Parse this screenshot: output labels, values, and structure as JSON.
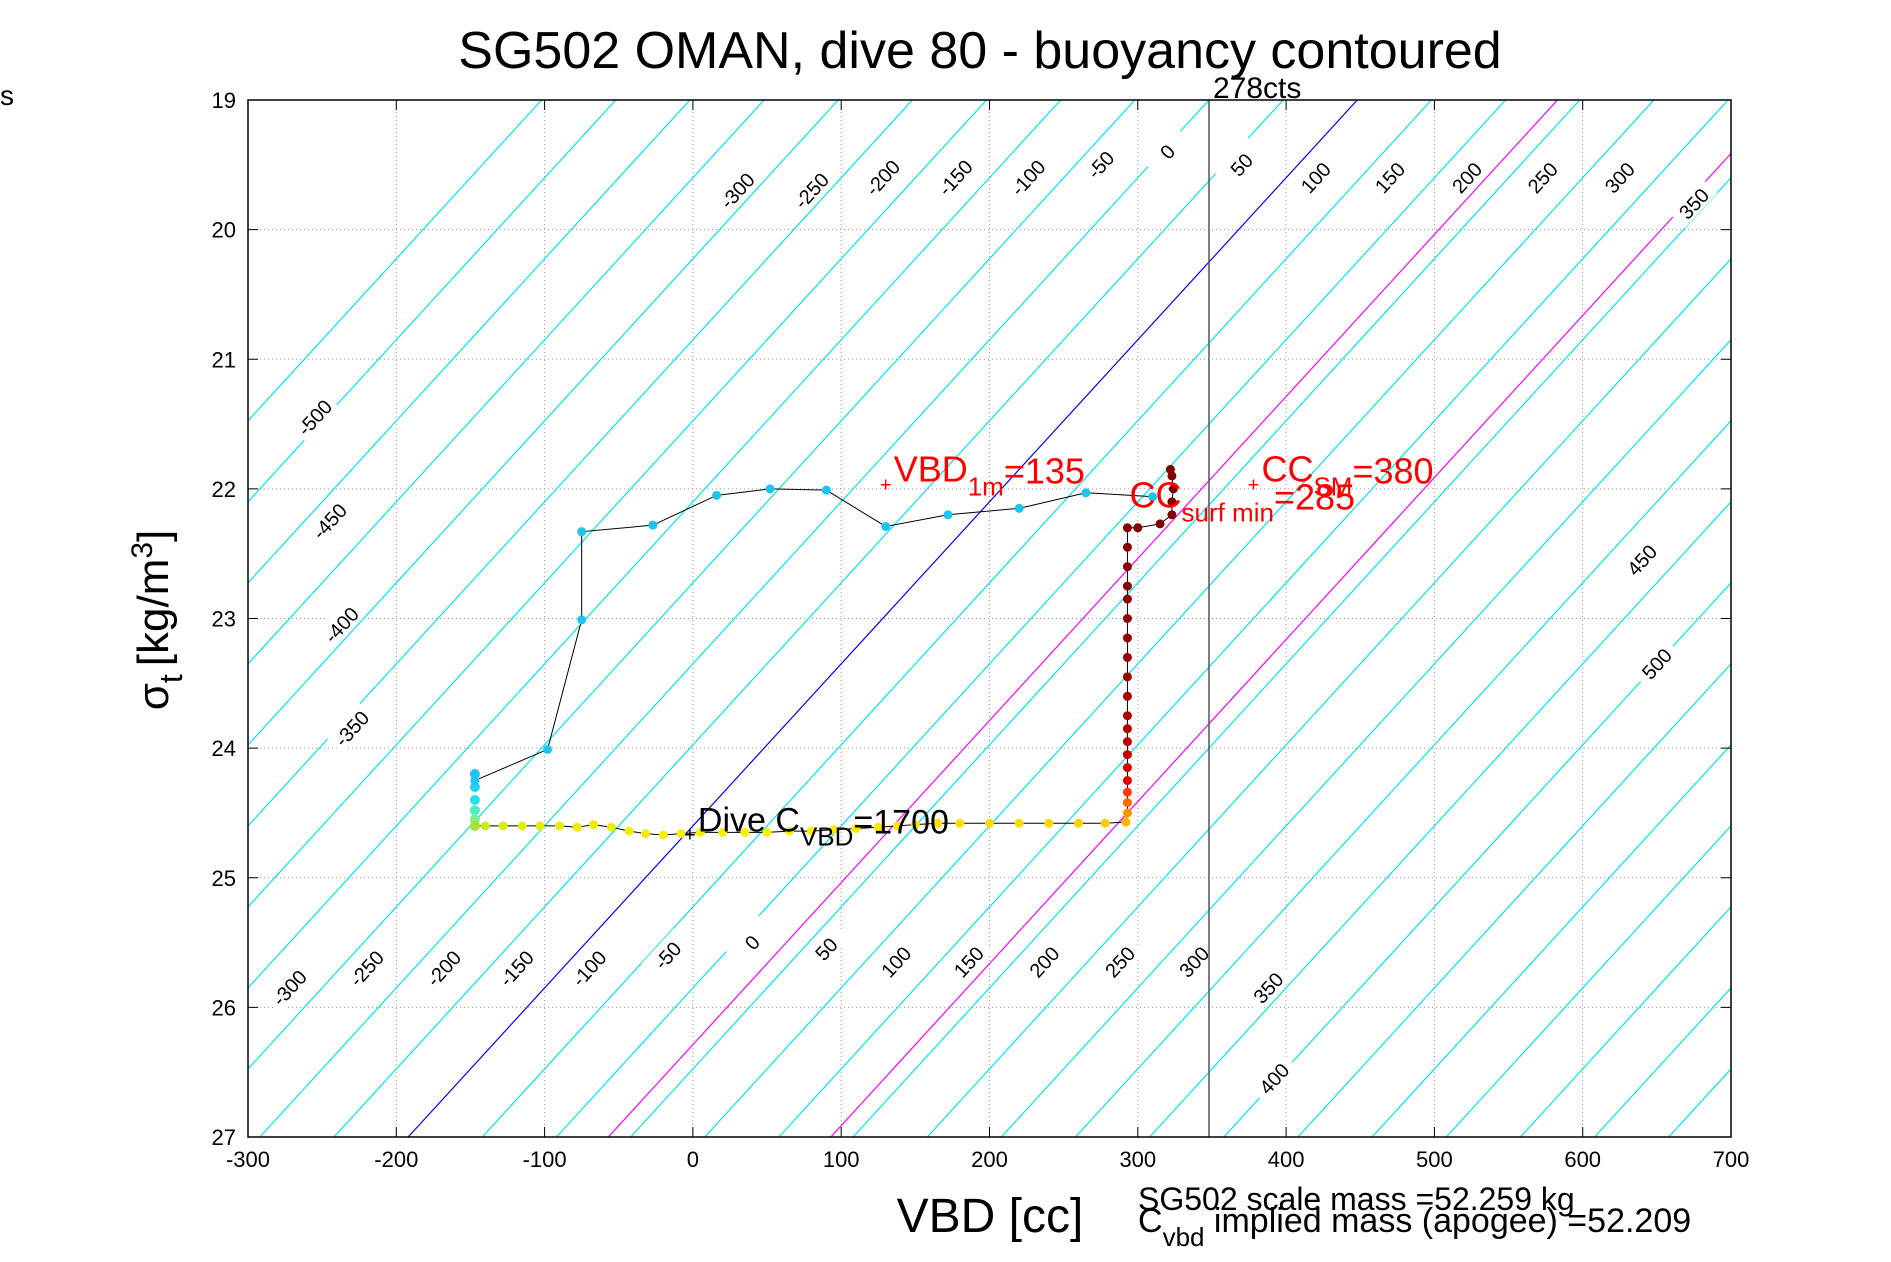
{
  "corner_label": "s",
  "chart_data": {
    "type": "scatter",
    "title": "SG502 OMAN, dive 80 - buoyancy contoured",
    "xlabel": "VBD [cc]",
    "ylabel_base": "σ",
    "ylabel_sub": "t",
    "ylabel_unit": "[kg/m",
    "ylabel_sup": "3",
    "ylabel_close": "]",
    "xlim": [
      -300,
      700
    ],
    "ylim": [
      19,
      27
    ],
    "y_reversed": true,
    "grid": true,
    "xticks": [
      -300,
      -200,
      -100,
      0,
      100,
      200,
      300,
      400,
      500,
      600,
      700
    ],
    "yticks": [
      19,
      20,
      21,
      22,
      23,
      24,
      25,
      26,
      27
    ],
    "vertical_line": {
      "x": 348,
      "label": "278cts",
      "color": "#555555"
    },
    "contour_colors": {
      "default": "#00e5ee",
      "zero": "#0000ff",
      "highlight": "#ff00ff"
    },
    "contours": [
      {
        "value": -500,
        "label": "-500"
      },
      {
        "value": -450,
        "label": "-450"
      },
      {
        "value": -400,
        "label": "-400"
      },
      {
        "value": -350,
        "label": "-350"
      },
      {
        "value": -300,
        "label": "-300"
      },
      {
        "value": -250,
        "label": "-250"
      },
      {
        "value": -200,
        "label": "-200"
      },
      {
        "value": -150,
        "label": "-150"
      },
      {
        "value": -100,
        "label": "-100"
      },
      {
        "value": -50,
        "label": "-50"
      },
      {
        "value": 0,
        "label": "0"
      },
      {
        "value": 50,
        "label": "50"
      },
      {
        "value": 100,
        "label": "100"
      },
      {
        "value": 150,
        "label": "150"
      },
      {
        "value": 200,
        "label": "200"
      },
      {
        "value": 250,
        "label": "250"
      },
      {
        "value": 300,
        "label": "300"
      },
      {
        "value": 350,
        "label": "350"
      },
      {
        "value": 400,
        "label": "400"
      },
      {
        "value": 450,
        "label": "450"
      },
      {
        "value": 500,
        "label": "500"
      }
    ],
    "contour_lines": [
      -550,
      -500,
      -450,
      -400,
      -350,
      -300,
      -250,
      -200,
      -150,
      -100,
      -50,
      0,
      50,
      100,
      150,
      200,
      250,
      300,
      350,
      400,
      450,
      500,
      550,
      600,
      650,
      700,
      750,
      800,
      850
    ],
    "highlight_contours": [
      135,
      285
    ],
    "contour_labels_top": [
      {
        "x": 30,
        "y": 19.7,
        "label": "-300"
      },
      {
        "x": 80,
        "y": 19.7,
        "label": "-250"
      },
      {
        "x": 128,
        "y": 19.6,
        "label": "-200"
      },
      {
        "x": 177,
        "y": 19.6,
        "label": "-150"
      },
      {
        "x": 226,
        "y": 19.6,
        "label": "-100"
      },
      {
        "x": 275,
        "y": 19.5,
        "label": "-50"
      },
      {
        "x": 320,
        "y": 19.4,
        "label": "0"
      },
      {
        "x": 370,
        "y": 19.5,
        "label": "50"
      },
      {
        "x": 420,
        "y": 19.6,
        "label": "100"
      },
      {
        "x": 470,
        "y": 19.6,
        "label": "150"
      },
      {
        "x": 522,
        "y": 19.6,
        "label": "200"
      },
      {
        "x": 573,
        "y": 19.6,
        "label": "250"
      },
      {
        "x": 625,
        "y": 19.6,
        "label": "300"
      },
      {
        "x": 675,
        "y": 19.8,
        "label": "350"
      }
    ],
    "contour_labels_left": [
      {
        "x": -255,
        "y": 21.45,
        "label": "-500"
      },
      {
        "x": -245,
        "y": 22.25,
        "label": "-450"
      },
      {
        "x": -237,
        "y": 23.05,
        "label": "-400"
      },
      {
        "x": -230,
        "y": 23.85,
        "label": "-350"
      }
    ],
    "contour_labels_right": [
      {
        "x": 640,
        "y": 22.55,
        "label": "450"
      },
      {
        "x": 650,
        "y": 23.35,
        "label": "500"
      }
    ],
    "contour_labels_bottom": [
      {
        "x": -272,
        "y": 25.85,
        "label": "-300"
      },
      {
        "x": -220,
        "y": 25.7,
        "label": "-250"
      },
      {
        "x": -168,
        "y": 25.7,
        "label": "-200"
      },
      {
        "x": -119,
        "y": 25.7,
        "label": "-150"
      },
      {
        "x": -70,
        "y": 25.7,
        "label": "-100"
      },
      {
        "x": -17,
        "y": 25.6,
        "label": "-50"
      },
      {
        "x": 40,
        "y": 25.5,
        "label": "0"
      },
      {
        "x": 90,
        "y": 25.55,
        "label": "50"
      },
      {
        "x": 137,
        "y": 25.65,
        "label": "100"
      },
      {
        "x": 186,
        "y": 25.65,
        "label": "150"
      },
      {
        "x": 237,
        "y": 25.65,
        "label": "200"
      },
      {
        "x": 288,
        "y": 25.65,
        "label": "250"
      },
      {
        "x": 338,
        "y": 25.65,
        "label": "300"
      },
      {
        "x": 388,
        "y": 25.85,
        "label": "350"
      },
      {
        "x": 392,
        "y": 26.55,
        "label": "400"
      }
    ],
    "dive_path": [
      {
        "x": -147,
        "y": 24.6,
        "c": "#a6e22e"
      },
      {
        "x": -140,
        "y": 24.6,
        "c": "#cfe81a"
      },
      {
        "x": -128,
        "y": 24.6,
        "c": "#d9ea14"
      },
      {
        "x": -115,
        "y": 24.6,
        "c": "#dfeb10"
      },
      {
        "x": -103,
        "y": 24.6,
        "c": "#e4ec0c"
      },
      {
        "x": -90,
        "y": 24.6,
        "c": "#e6ec0b"
      },
      {
        "x": -78,
        "y": 24.61,
        "c": "#e8ed0a"
      },
      {
        "x": -67,
        "y": 24.59,
        "c": "#eaed09"
      },
      {
        "x": -55,
        "y": 24.61,
        "c": "#ecee08"
      },
      {
        "x": -43,
        "y": 24.64,
        "c": "#eeee07"
      },
      {
        "x": -32,
        "y": 24.66,
        "c": "#f0ee06"
      },
      {
        "x": -20,
        "y": 24.67,
        "c": "#f2ef05"
      },
      {
        "x": -8,
        "y": 24.66,
        "c": "#f4ef04"
      },
      {
        "x": 5,
        "y": 24.65,
        "c": "#f6ef03"
      },
      {
        "x": 20,
        "y": 24.65,
        "c": "#f8f002"
      },
      {
        "x": 35,
        "y": 24.65,
        "c": "#faf001"
      },
      {
        "x": 50,
        "y": 24.65,
        "c": "#fcf000"
      },
      {
        "x": 65,
        "y": 24.64,
        "c": "#fdee00"
      },
      {
        "x": 80,
        "y": 24.64,
        "c": "#feec00"
      },
      {
        "x": 95,
        "y": 24.63,
        "c": "#ffea00"
      },
      {
        "x": 110,
        "y": 24.62,
        "c": "#ffe800"
      },
      {
        "x": 125,
        "y": 24.61,
        "c": "#ffe600"
      },
      {
        "x": 138,
        "y": 24.6,
        "c": "#ffe400"
      },
      {
        "x": 150,
        "y": 24.59,
        "c": "#ffe200"
      },
      {
        "x": 165,
        "y": 24.58,
        "c": "#ffe000"
      },
      {
        "x": 180,
        "y": 24.58,
        "c": "#ffde00"
      },
      {
        "x": 200,
        "y": 24.58,
        "c": "#ffdc00"
      },
      {
        "x": 220,
        "y": 24.58,
        "c": "#ffd900"
      },
      {
        "x": 240,
        "y": 24.58,
        "c": "#ffd600"
      },
      {
        "x": 260,
        "y": 24.58,
        "c": "#ffd200"
      },
      {
        "x": 278,
        "y": 24.58,
        "c": "#ffcc00"
      },
      {
        "x": 292,
        "y": 24.57,
        "c": "#ffb400"
      },
      {
        "x": 293,
        "y": 24.5,
        "c": "#ff9000"
      },
      {
        "x": 293,
        "y": 24.42,
        "c": "#ff6a00"
      },
      {
        "x": 293,
        "y": 24.34,
        "c": "#ff3a00"
      },
      {
        "x": 293,
        "y": 24.25,
        "c": "#e40000"
      },
      {
        "x": 293,
        "y": 24.15,
        "c": "#d00000"
      },
      {
        "x": 293,
        "y": 24.05,
        "c": "#c40000"
      },
      {
        "x": 293,
        "y": 23.95,
        "c": "#bc0000"
      },
      {
        "x": 293,
        "y": 23.85,
        "c": "#b40000"
      },
      {
        "x": 293,
        "y": 23.75,
        "c": "#ae0000"
      },
      {
        "x": 293,
        "y": 23.6,
        "c": "#a80000"
      },
      {
        "x": 293,
        "y": 23.45,
        "c": "#a20000"
      },
      {
        "x": 293,
        "y": 23.3,
        "c": "#9c0000"
      },
      {
        "x": 293,
        "y": 23.15,
        "c": "#960000"
      },
      {
        "x": 293,
        "y": 23.0,
        "c": "#920000"
      },
      {
        "x": 293,
        "y": 22.85,
        "c": "#8e0000"
      },
      {
        "x": 293,
        "y": 22.75,
        "c": "#8a0000"
      },
      {
        "x": 293,
        "y": 22.6,
        "c": "#880000"
      },
      {
        "x": 293,
        "y": 22.45,
        "c": "#860000"
      },
      {
        "x": 293,
        "y": 22.3,
        "c": "#840000"
      },
      {
        "x": 300,
        "y": 22.3,
        "c": "#820000"
      },
      {
        "x": 315,
        "y": 22.27,
        "c": "#800000"
      },
      {
        "x": 323,
        "y": 22.2,
        "c": "#800000"
      },
      {
        "x": 323,
        "y": 22.1,
        "c": "#800000"
      },
      {
        "x": 324,
        "y": 22.0,
        "c": "#800000"
      },
      {
        "x": 323,
        "y": 21.9,
        "c": "#800000"
      },
      {
        "x": 322,
        "y": 21.85,
        "c": "#800000"
      }
    ],
    "climb_path": [
      {
        "x": 310,
        "y": 22.06
      },
      {
        "x": 265,
        "y": 22.03
      },
      {
        "x": 220,
        "y": 22.15
      },
      {
        "x": 172,
        "y": 22.2
      },
      {
        "x": 130,
        "y": 22.29
      },
      {
        "x": 90,
        "y": 22.01
      },
      {
        "x": 52,
        "y": 22.0
      },
      {
        "x": 16,
        "y": 22.05
      },
      {
        "x": -27,
        "y": 22.28
      },
      {
        "x": -75,
        "y": 22.33
      },
      {
        "x": -75,
        "y": 23.01
      },
      {
        "x": -98,
        "y": 24.01
      },
      {
        "x": -147,
        "y": 24.25
      },
      {
        "x": -147,
        "y": 24.2
      }
    ],
    "climb_color": "#1ec3f0",
    "climb_gradient_colors": [
      "#21c6ee",
      "#20d2f0",
      "#28e0e8",
      "#50ecc0",
      "#7ef090",
      "#a6e22e"
    ],
    "climb_gradient_y": [
      24.2,
      24.3,
      24.4,
      24.48,
      24.55,
      24.6
    ],
    "annotations": {
      "vbd_1m": {
        "x": 130,
        "y": 21.96,
        "base": "VBD",
        "sub": "1m",
        "tail": "=135",
        "color": "#ff0000"
      },
      "cc_sm": {
        "x": 378,
        "y": 21.96,
        "base": "CC",
        "sub": "SM",
        "tail": "=380",
        "color": "#ff0000"
      },
      "cc_surf": {
        "x": 285,
        "y": 22.08,
        "base": "CC",
        "sub": "surf min",
        "tail": "=285",
        "color": "#ff0000"
      },
      "dive_c": {
        "x": -2,
        "y": 24.66,
        "base": "Dive C",
        "sub": "VBD",
        "tail": "=1700",
        "color": "#000000"
      }
    },
    "footer": {
      "line1": "SG502 scale mass =52.259 kg",
      "line2_base": "C",
      "line2_sub": "vbd",
      "line2_tail": " implied mass (apogee) =52.209"
    }
  }
}
